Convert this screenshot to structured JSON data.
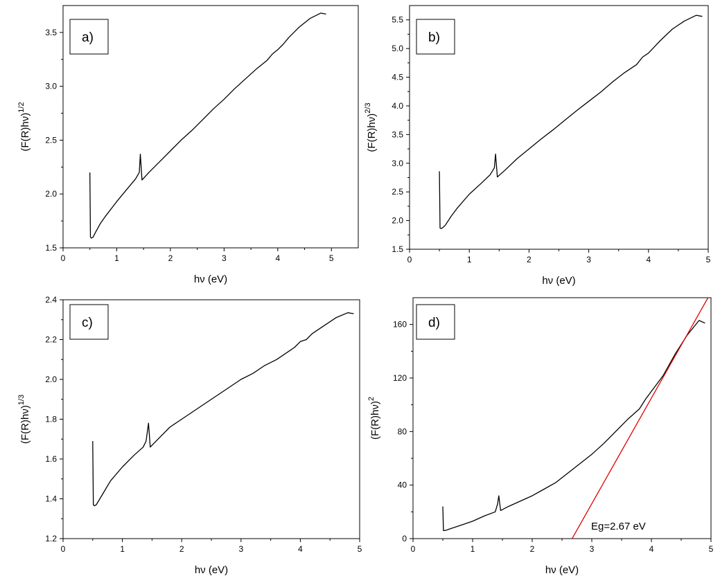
{
  "chart_data": [
    {
      "panel": "a)",
      "type": "line",
      "xlabel": "hν (eV)",
      "ylabel_base": "(F(R)hν)",
      "ylabel_exp": "1/2",
      "xlim": [
        0,
        5.5
      ],
      "ylim": [
        1.5,
        3.75
      ],
      "xticks": [
        "0",
        "1",
        "2",
        "3",
        "4",
        "5"
      ],
      "yticks": [
        "1.5",
        "2.0",
        "2.5",
        "3.0",
        "3.5"
      ],
      "series": [
        {
          "color": "#000000",
          "x": [
            0.5,
            0.51,
            0.53,
            0.56,
            0.6,
            0.7,
            0.8,
            1.0,
            1.2,
            1.35,
            1.42,
            1.44,
            1.47,
            1.6,
            1.8,
            2.0,
            2.2,
            2.4,
            2.6,
            2.8,
            3.0,
            3.2,
            3.4,
            3.6,
            3.8,
            3.9,
            4.0,
            4.1,
            4.2,
            4.4,
            4.6,
            4.8,
            4.9
          ],
          "y": [
            2.2,
            1.6,
            1.59,
            1.6,
            1.64,
            1.73,
            1.8,
            1.93,
            2.05,
            2.14,
            2.2,
            2.37,
            2.13,
            2.2,
            2.3,
            2.4,
            2.5,
            2.59,
            2.69,
            2.79,
            2.88,
            2.98,
            3.07,
            3.16,
            3.24,
            3.3,
            3.34,
            3.39,
            3.45,
            3.55,
            3.63,
            3.68,
            3.67
          ]
        }
      ]
    },
    {
      "panel": "b)",
      "type": "line",
      "xlabel": "hν (eV)",
      "ylabel_base": "(F(R)hν)",
      "ylabel_exp": "2/3",
      "xlim": [
        0,
        5
      ],
      "ylim": [
        1.5,
        5.75
      ],
      "xticks": [
        "0",
        "1",
        "2",
        "3",
        "4",
        "5"
      ],
      "yticks": [
        "1.5",
        "2.0",
        "2.5",
        "3.0",
        "3.5",
        "4.0",
        "4.5",
        "5.0",
        "5.5"
      ],
      "series": [
        {
          "color": "#000000",
          "x": [
            0.5,
            0.51,
            0.53,
            0.56,
            0.6,
            0.7,
            0.8,
            1.0,
            1.2,
            1.35,
            1.42,
            1.44,
            1.47,
            1.6,
            1.8,
            2.0,
            2.2,
            2.4,
            2.6,
            2.8,
            3.0,
            3.2,
            3.4,
            3.6,
            3.8,
            3.9,
            4.0,
            4.1,
            4.2,
            4.4,
            4.6,
            4.8,
            4.9
          ],
          "y": [
            2.86,
            1.87,
            1.86,
            1.88,
            1.92,
            2.08,
            2.22,
            2.46,
            2.65,
            2.8,
            2.92,
            3.16,
            2.76,
            2.88,
            3.08,
            3.25,
            3.42,
            3.58,
            3.75,
            3.92,
            4.08,
            4.24,
            4.42,
            4.58,
            4.72,
            4.85,
            4.92,
            5.03,
            5.14,
            5.34,
            5.48,
            5.58,
            5.56
          ]
        }
      ]
    },
    {
      "panel": "c)",
      "type": "line",
      "xlabel": "hν (eV)",
      "ylabel_base": "(F(R)hν)",
      "ylabel_exp": "1/3",
      "xlim": [
        0,
        5
      ],
      "ylim": [
        1.2,
        2.4
      ],
      "xticks": [
        "0",
        "1",
        "2",
        "3",
        "4",
        "5"
      ],
      "yticks": [
        "1.2",
        "1.4",
        "1.6",
        "1.8",
        "2.0",
        "2.2",
        "2.4"
      ],
      "series": [
        {
          "color": "#000000",
          "x": [
            0.5,
            0.51,
            0.53,
            0.56,
            0.6,
            0.7,
            0.8,
            1.0,
            1.2,
            1.35,
            1.4,
            1.44,
            1.47,
            1.6,
            1.8,
            2.0,
            2.2,
            2.4,
            2.6,
            2.8,
            3.0,
            3.2,
            3.4,
            3.6,
            3.8,
            3.9,
            4.0,
            4.1,
            4.2,
            4.4,
            4.6,
            4.8,
            4.9
          ],
          "y": [
            1.69,
            1.37,
            1.365,
            1.37,
            1.39,
            1.44,
            1.49,
            1.56,
            1.62,
            1.66,
            1.69,
            1.78,
            1.66,
            1.7,
            1.76,
            1.8,
            1.84,
            1.88,
            1.92,
            1.96,
            2.0,
            2.03,
            2.07,
            2.1,
            2.14,
            2.16,
            2.19,
            2.2,
            2.23,
            2.27,
            2.31,
            2.335,
            2.33
          ]
        }
      ]
    },
    {
      "panel": "d)",
      "type": "line",
      "xlabel": "hν (eV)",
      "ylabel_base": "(F(R)hν)",
      "ylabel_exp": "2",
      "xlim": [
        0,
        5
      ],
      "ylim": [
        0,
        180
      ],
      "xticks": [
        "0",
        "1",
        "2",
        "3",
        "4",
        "5"
      ],
      "yticks": [
        "0",
        "40",
        "80",
        "120",
        "160"
      ],
      "series": [
        {
          "color": "#000000",
          "x": [
            0.5,
            0.51,
            0.53,
            0.56,
            0.6,
            0.8,
            1.0,
            1.2,
            1.38,
            1.42,
            1.44,
            1.47,
            1.6,
            1.8,
            2.0,
            2.2,
            2.4,
            2.6,
            2.8,
            3.0,
            3.2,
            3.4,
            3.6,
            3.8,
            3.9,
            4.0,
            4.1,
            4.2,
            4.4,
            4.6,
            4.8,
            4.9
          ],
          "y": [
            24,
            6,
            6,
            6.3,
            7,
            10,
            13,
            17,
            20,
            26,
            32,
            21,
            24,
            28,
            32,
            37,
            42,
            49,
            56,
            63,
            71,
            80,
            89,
            97,
            104,
            110,
            116,
            122,
            138,
            152,
            163,
            161
          ]
        },
        {
          "color": "#e00000",
          "x": [
            2.67,
            4.95
          ],
          "y": [
            0,
            180
          ]
        }
      ],
      "annotation": "Eg=2.67 eV"
    }
  ]
}
